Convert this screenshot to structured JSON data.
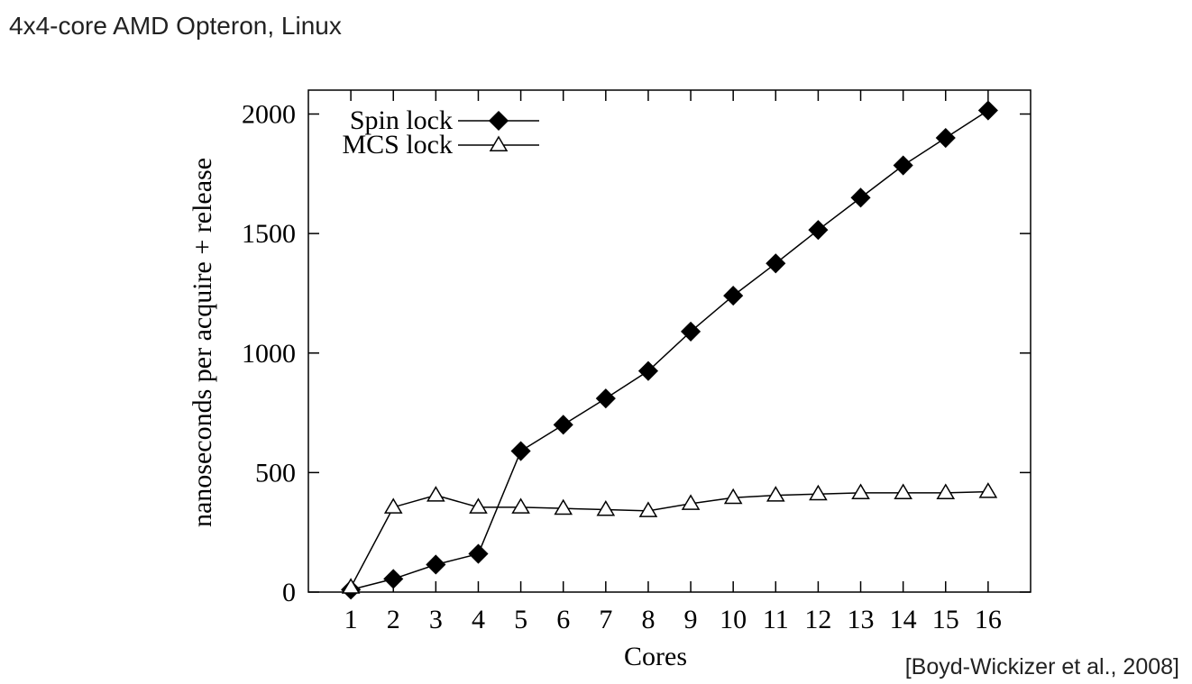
{
  "slide": {
    "subtitle": "4x4-core AMD Opteron, Linux",
    "citation": "[Boyd-Wickizer et al., 2008]"
  },
  "chart_data": {
    "type": "line",
    "x_label": "Cores",
    "y_label": "nanoseconds per acquire + release",
    "x": [
      1,
      2,
      3,
      4,
      5,
      6,
      7,
      8,
      9,
      10,
      11,
      12,
      13,
      14,
      15,
      16
    ],
    "series": [
      {
        "name": "Spin lock",
        "color": "#000000",
        "marker": "diamond-filled",
        "values": [
          10,
          55,
          115,
          160,
          590,
          700,
          810,
          925,
          1090,
          1240,
          1375,
          1515,
          1650,
          1785,
          1900,
          2015
        ]
      },
      {
        "name": "MCS lock",
        "color": "#000000",
        "marker": "triangle-open",
        "values": [
          20,
          355,
          405,
          355,
          355,
          350,
          345,
          340,
          370,
          395,
          405,
          410,
          415,
          415,
          415,
          420
        ]
      }
    ],
    "xlim": [
      0,
      17
    ],
    "xticks": [
      1,
      2,
      3,
      4,
      5,
      6,
      7,
      8,
      9,
      10,
      11,
      12,
      13,
      14,
      15,
      16
    ],
    "ylim": [
      0,
      2100
    ],
    "yticks": [
      0,
      500,
      1000,
      1500,
      2000
    ],
    "grid": false,
    "legend": "top-left"
  }
}
